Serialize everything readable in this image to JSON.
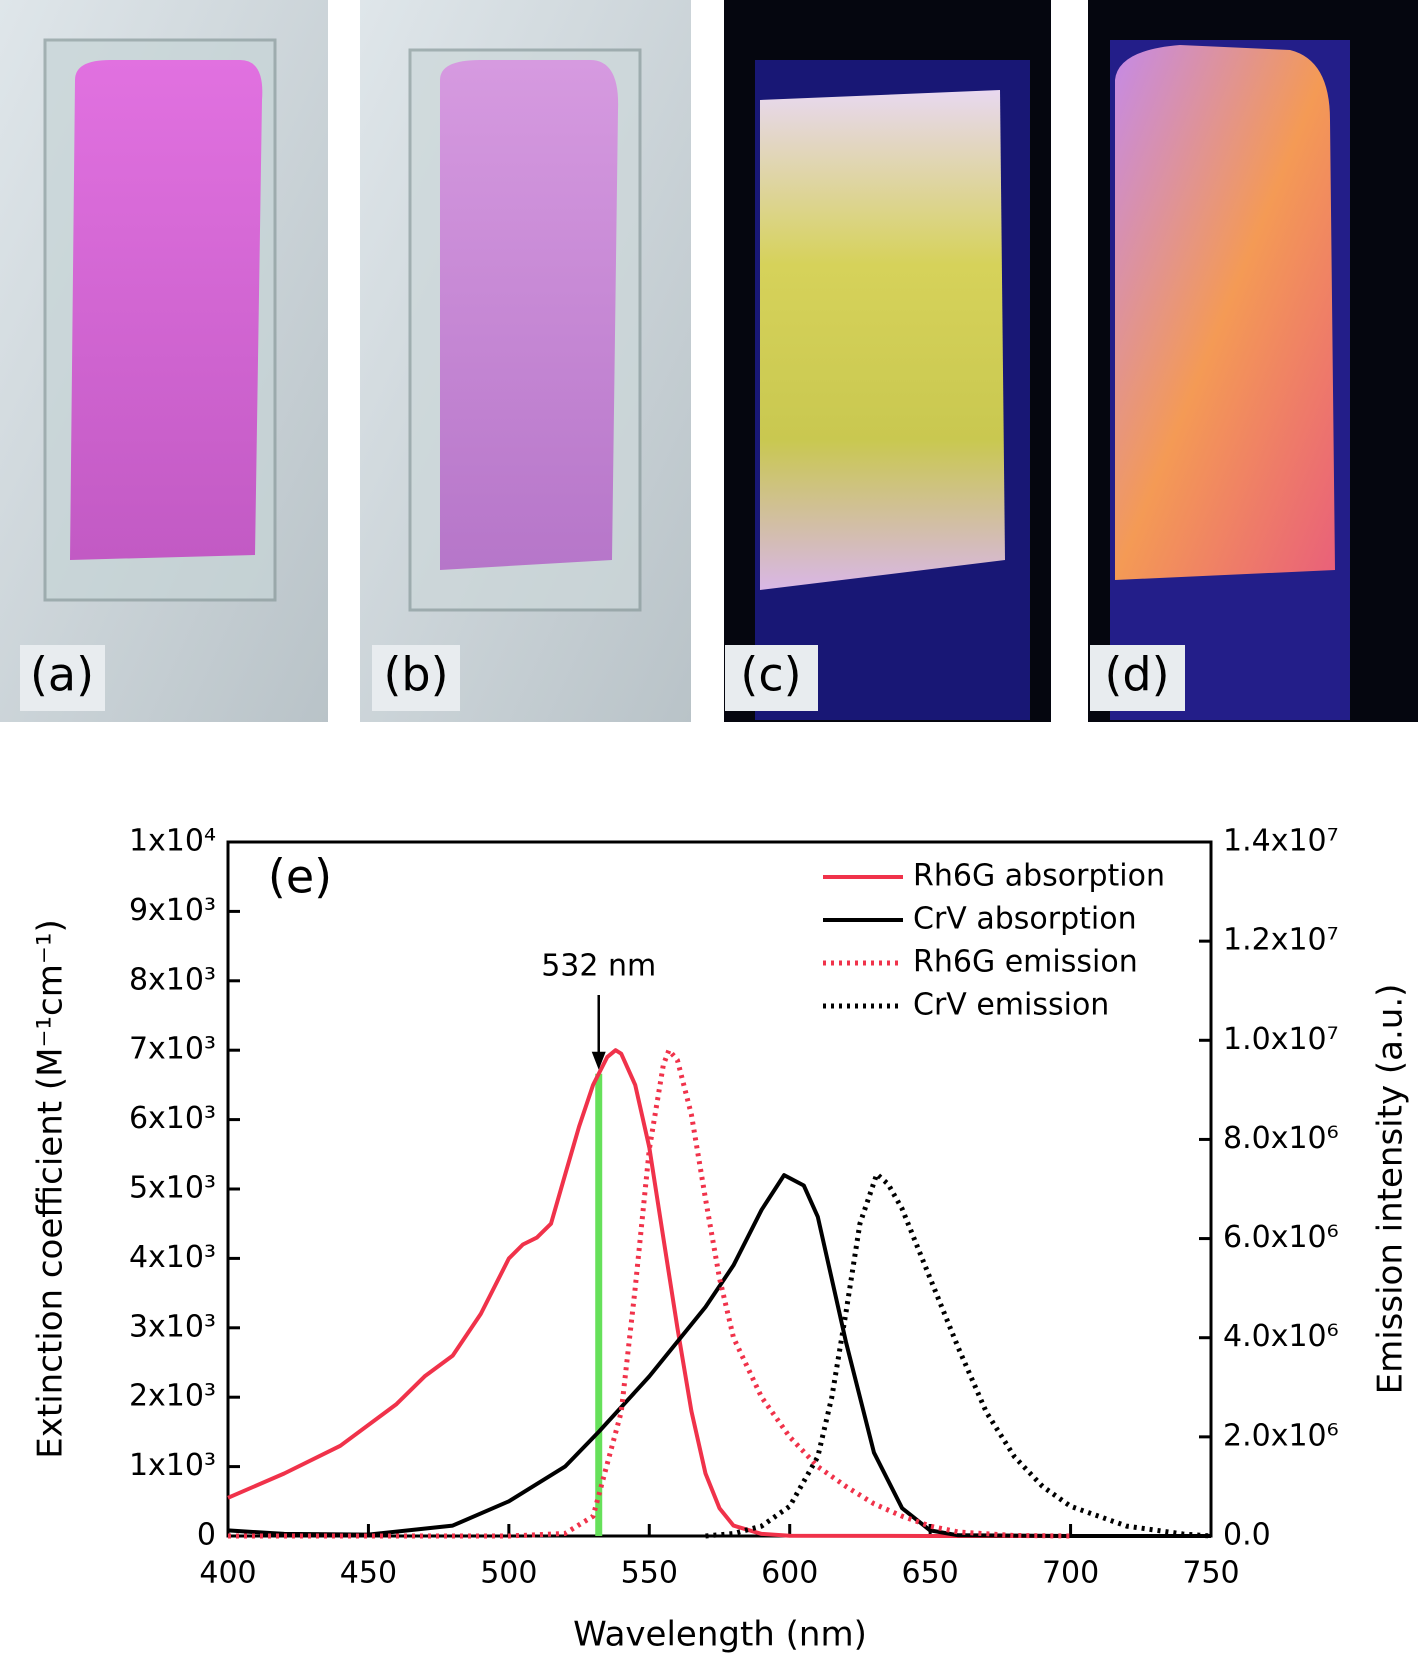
{
  "photos": {
    "labels": [
      "(a)",
      "(b)",
      "(c)",
      "(d)"
    ]
  },
  "chart_data": {
    "type": "line",
    "title": "(e)",
    "x_label": "Wavelength (nm)",
    "y_label": "Extinction coefficient (M⁻¹cm⁻¹)",
    "y2_label": "Emission intensity (a.u.)",
    "annotation": "532 nm",
    "laser_line": {
      "x": 532,
      "color": "#66e05a"
    },
    "xlim": [
      400,
      750
    ],
    "xticks": [
      400,
      450,
      500,
      550,
      600,
      650,
      700,
      750
    ],
    "ylim": [
      0,
      10000
    ],
    "yticks": [
      0,
      {
        "value": 1000,
        "label": "1x10³"
      },
      {
        "value": 2000,
        "label": "2x10³"
      },
      {
        "value": 3000,
        "label": "3x10³"
      },
      {
        "value": 4000,
        "label": "4x10³"
      },
      {
        "value": 5000,
        "label": "5x10³"
      },
      {
        "value": 6000,
        "label": "6x10³"
      },
      {
        "value": 7000,
        "label": "7x10³"
      },
      {
        "value": 8000,
        "label": "8x10³"
      },
      {
        "value": 9000,
        "label": "9x10³"
      },
      {
        "value": 10000,
        "label": "1x10⁴"
      }
    ],
    "y2lim": [
      0,
      14000000
    ],
    "y2ticks": [
      {
        "value": 0,
        "label": "0.0"
      },
      {
        "value": 2000000,
        "label": "2.0x10⁶"
      },
      {
        "value": 4000000,
        "label": "4.0x10⁶"
      },
      {
        "value": 6000000,
        "label": "6.0x10⁶"
      },
      {
        "value": 8000000,
        "label": "8.0x10⁶"
      },
      {
        "value": 10000000,
        "label": "1.0x10⁷"
      },
      {
        "value": 12000000,
        "label": "1.2x10⁷"
      },
      {
        "value": 14000000,
        "label": "1.4x10⁷"
      }
    ],
    "legend": "upper right",
    "series": [
      {
        "name": "Rh6G absorption",
        "color": "#f0324a",
        "dashed": false,
        "x": [
          400,
          420,
          440,
          460,
          470,
          480,
          490,
          500,
          505,
          510,
          515,
          520,
          525,
          530,
          535,
          538,
          540,
          545,
          550,
          555,
          560,
          565,
          570,
          575,
          580,
          590,
          600,
          650,
          750
        ],
        "values": [
          550,
          900,
          1300,
          1900,
          2300,
          2600,
          3200,
          4000,
          4200,
          4300,
          4500,
          5200,
          5900,
          6500,
          6900,
          7000,
          6950,
          6500,
          5600,
          4300,
          3000,
          1800,
          900,
          400,
          150,
          30,
          5,
          0,
          0
        ]
      },
      {
        "name": "CrV absorption",
        "color": "#000000",
        "dashed": false,
        "x": [
          400,
          420,
          450,
          480,
          500,
          520,
          532,
          550,
          570,
          580,
          590,
          598,
          605,
          610,
          620,
          630,
          640,
          650,
          660,
          700,
          750
        ],
        "values": [
          80,
          30,
          20,
          150,
          500,
          1000,
          1500,
          2300,
          3300,
          3900,
          4700,
          5200,
          5050,
          4600,
          2800,
          1200,
          400,
          80,
          10,
          0,
          0
        ]
      },
      {
        "name": "Rh6G emission",
        "color": "#f0324a",
        "dashed": true,
        "axis": "y2",
        "x": [
          400,
          500,
          520,
          530,
          540,
          545,
          550,
          555,
          557,
          560,
          565,
          570,
          575,
          580,
          590,
          600,
          610,
          620,
          630,
          640,
          650,
          660,
          680,
          700
        ],
        "values": [
          0,
          0,
          50000,
          400000,
          2500000,
          5000000,
          7800000,
          9500000,
          9800000,
          9600000,
          8500000,
          6800000,
          5200000,
          4000000,
          2800000,
          2000000,
          1400000,
          1000000,
          650000,
          400000,
          200000,
          80000,
          10000,
          0
        ]
      },
      {
        "name": "CrV emission",
        "color": "#000000",
        "dashed": true,
        "axis": "y2",
        "x": [
          570,
          580,
          590,
          600,
          610,
          615,
          620,
          625,
          631,
          635,
          640,
          650,
          660,
          670,
          680,
          690,
          700,
          720,
          740,
          750
        ],
        "values": [
          0,
          50000,
          200000,
          600000,
          1600000,
          2800000,
          4500000,
          6300000,
          7300000,
          7100000,
          6600000,
          5200000,
          3800000,
          2500000,
          1600000,
          1000000,
          600000,
          200000,
          40000,
          0
        ]
      }
    ]
  }
}
